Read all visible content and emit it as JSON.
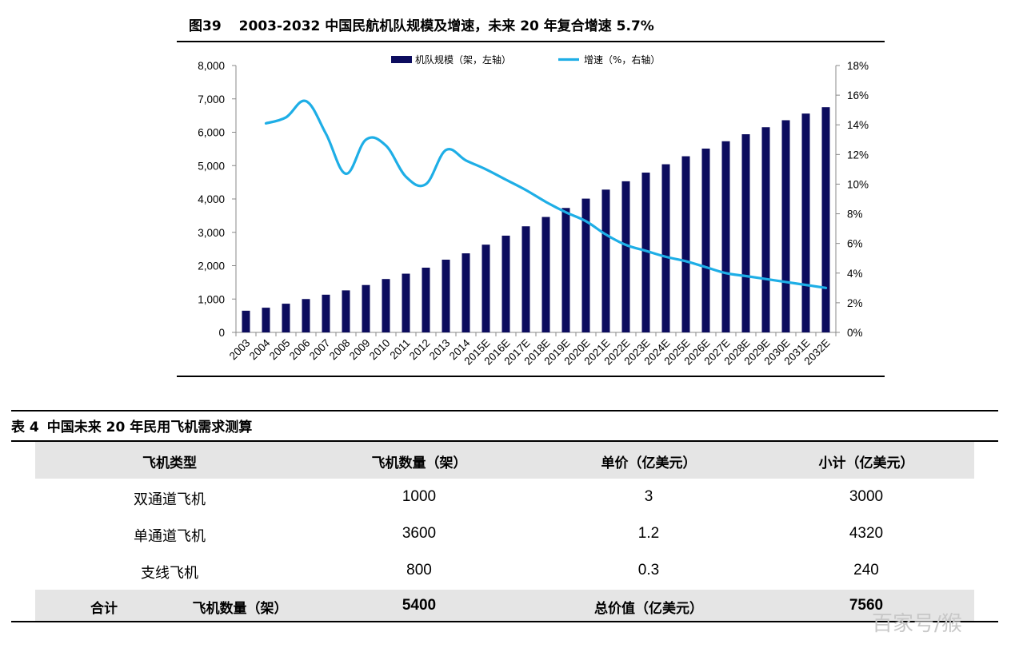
{
  "figure": {
    "label": "图39",
    "title": "2003-2032 中国民航机队规模及增速，未来 20 年复合增速 5.7%"
  },
  "chart_data": {
    "type": "bar",
    "categories": [
      "2003",
      "2004",
      "2005",
      "2006",
      "2007",
      "2008",
      "2009",
      "2010",
      "2011",
      "2012",
      "2013",
      "2014",
      "2015E",
      "2016E",
      "2017E",
      "2018E",
      "2019E",
      "2020E",
      "2021E",
      "2022E",
      "2023E",
      "2024E",
      "2025E",
      "2026E",
      "2027E",
      "2028E",
      "2029E",
      "2030E",
      "2031E",
      "2032E"
    ],
    "series": [
      {
        "name": "机队规模（架，左轴）",
        "type": "bar",
        "axis": "left",
        "color": "#0c0c5e",
        "values": [
          650,
          740,
          860,
          1000,
          1130,
          1260,
          1420,
          1600,
          1760,
          1940,
          2180,
          2370,
          2630,
          2900,
          3180,
          3460,
          3730,
          4010,
          4280,
          4530,
          4790,
          5040,
          5280,
          5510,
          5730,
          5940,
          6150,
          6360,
          6560,
          6750
        ]
      },
      {
        "name": "增速（%，右轴）",
        "type": "line",
        "axis": "right",
        "color": "#1eaee6",
        "values": [
          null,
          14.1,
          14.5,
          15.6,
          13.4,
          10.7,
          13.0,
          12.6,
          10.5,
          10.0,
          12.3,
          11.6,
          11.0,
          10.3,
          9.6,
          8.8,
          8.1,
          7.5,
          6.6,
          5.9,
          5.5,
          5.1,
          4.8,
          4.4,
          4.0,
          3.8,
          3.6,
          3.4,
          3.2,
          3.0
        ]
      }
    ],
    "ylim_left": [
      0,
      8000
    ],
    "ylim_right": [
      0,
      18
    ],
    "yticks_left": [
      "0",
      "1,000",
      "2,000",
      "3,000",
      "4,000",
      "5,000",
      "6,000",
      "7,000",
      "8,000"
    ],
    "yticks_right": [
      "0%",
      "2%",
      "4%",
      "6%",
      "8%",
      "10%",
      "12%",
      "14%",
      "16%",
      "18%"
    ],
    "legend_position": "top-center",
    "grid": false
  },
  "table": {
    "label": "表 4",
    "title": "中国未来 20 年民用飞机需求测算",
    "headers": [
      "飞机类型",
      "飞机数量（架）",
      "单价（亿美元）",
      "小计（亿美元）"
    ],
    "rows": [
      [
        "双通道飞机",
        "1000",
        "3",
        "3000"
      ],
      [
        "单通道飞机",
        "3600",
        "1.2",
        "4320"
      ],
      [
        "支线飞机",
        "800",
        "0.3",
        "240"
      ]
    ],
    "total": {
      "label": "合计",
      "count_label": "飞机数量（架）",
      "count": "5400",
      "value_label": "总价值（亿美元）",
      "value": "7560"
    }
  },
  "watermark": "百家号/猴"
}
